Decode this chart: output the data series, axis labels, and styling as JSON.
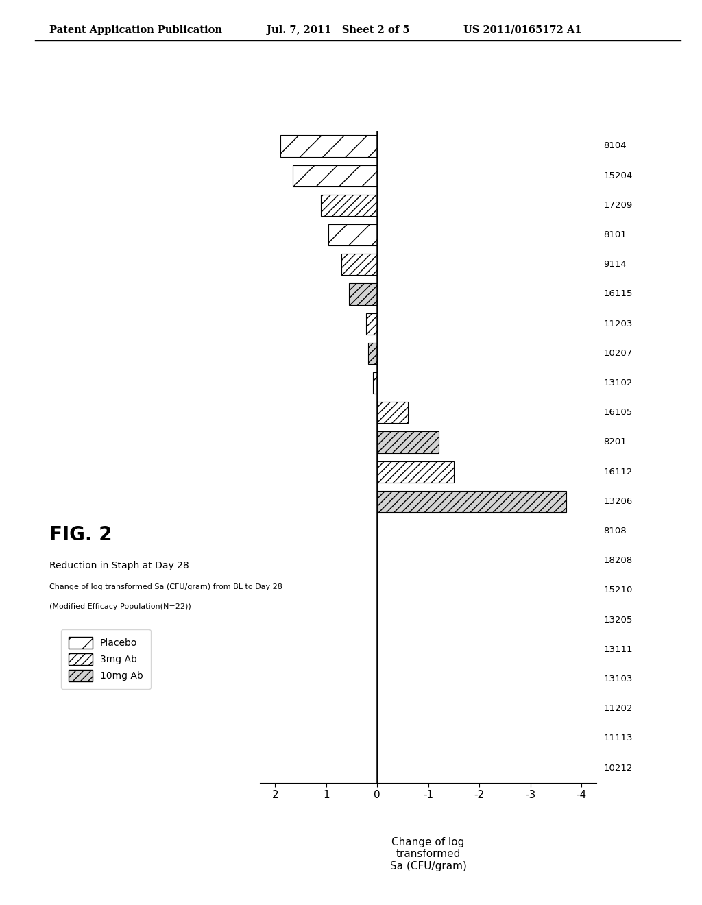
{
  "header_left": "Patent Application Publication",
  "header_mid": "Jul. 7, 2011   Sheet 2 of 5",
  "header_right": "US 2011/0165172 A1",
  "fig_label": "FIG. 2",
  "title_line1": "Reduction in Staph at Day 28",
  "title_line2": "Change of log transformed Sa (CFU/gram) from BL to Day 28",
  "title_line3": "(Modified Efficacy Population(N=22))",
  "xlabel": "Change of log\ntransformed\nSa (CFU/gram)",
  "patients": [
    "8104",
    "15204",
    "17209",
    "8101",
    "9114",
    "16115",
    "11203",
    "10207",
    "13102",
    "16105",
    "8201",
    "16112",
    "13206",
    "8108",
    "18208",
    "15210",
    "13205",
    "13111",
    "13103",
    "11202",
    "11113",
    "10212"
  ],
  "values": [
    1.9,
    1.65,
    1.1,
    0.95,
    0.7,
    0.55,
    0.22,
    0.18,
    0.08,
    -0.6,
    -1.2,
    -1.5,
    -3.7,
    0.0,
    0.0,
    0.0,
    0.0,
    0.0,
    0.0,
    0.0,
    0.0,
    0.0
  ],
  "treatments": [
    "Placebo",
    "Placebo",
    "3mg Ab",
    "Placebo",
    "3mg Ab",
    "10mg Ab",
    "3mg Ab",
    "10mg Ab",
    "Placebo",
    "3mg Ab",
    "10mg Ab",
    "3mg Ab",
    "10mg Ab",
    "Placebo",
    "Placebo",
    "Placebo",
    "Placebo",
    "Placebo",
    "Placebo",
    "Placebo",
    "Placebo",
    "Placebo"
  ],
  "xticks": [
    2,
    1,
    0,
    -1,
    -2,
    -3,
    -4
  ],
  "background": "white"
}
